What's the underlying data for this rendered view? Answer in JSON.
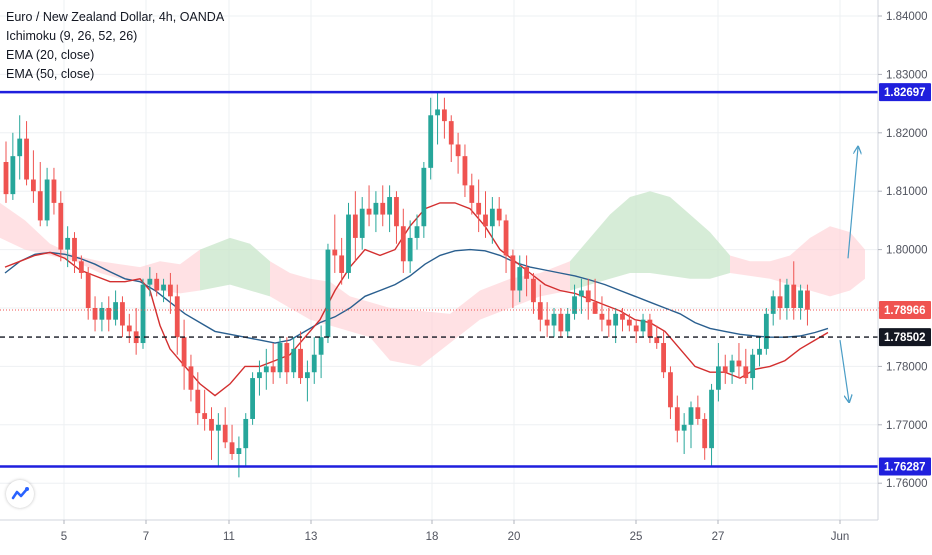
{
  "legend": {
    "symbol": "Euro / New Zealand Dollar, 4h, OANDA",
    "ichimoku": "Ichimoku (9, 26, 52, 26)",
    "ema20": "EMA (20, close)",
    "ema50": "EMA (50, close)"
  },
  "colors": {
    "up": "#26a69a",
    "down": "#ef5350",
    "ema20": "#d32f2f",
    "ema50": "#2a5f8f",
    "resistance": "#1f1fdd",
    "support": "#1f1fdd",
    "cloud_bull": "#c8e6c9",
    "cloud_bear": "#ffcdd2",
    "projection": "#4a9dc6",
    "current_price_label": "#ef5350",
    "axis_label_dark": "#131722",
    "horizontal_line_label": "#1f1fdd"
  },
  "chart_data": {
    "type": "candlestick",
    "title": "Euro / New Zealand Dollar, 4h, OANDA",
    "ylim": [
      1.7542,
      1.8464
    ],
    "y_ticks": [
      "1.84000",
      "1.83000",
      "1.82000",
      "1.81000",
      "1.80000",
      "1.79000",
      "1.78000",
      "1.77000",
      "1.76000"
    ],
    "x_ticks": [
      "5",
      "7",
      "11",
      "13",
      "18",
      "20",
      "25",
      "27",
      "Jun"
    ],
    "grid": true,
    "horizontal_lines": [
      {
        "name": "resistance",
        "price": 1.82697,
        "label": "1.82697",
        "style": "solid"
      },
      {
        "name": "support",
        "price": 1.76287,
        "label": "1.76287",
        "style": "solid"
      },
      {
        "name": "level",
        "price": 1.78502,
        "label": "1.78502",
        "style": "dashed"
      },
      {
        "name": "current-price",
        "price": 1.78966,
        "label": "1.78966",
        "style": "dotted"
      }
    ],
    "candles": [
      [
        1.815,
        1.8185,
        1.808,
        1.8095
      ],
      [
        1.8095,
        1.82,
        1.8085,
        1.816
      ],
      [
        1.816,
        1.823,
        1.812,
        1.819
      ],
      [
        1.819,
        1.822,
        1.811,
        1.812
      ],
      [
        1.812,
        1.817,
        1.808,
        1.81
      ],
      [
        1.81,
        1.815,
        1.804,
        1.805
      ],
      [
        1.805,
        1.814,
        1.804,
        1.812
      ],
      [
        1.812,
        1.814,
        1.806,
        1.808
      ],
      [
        1.808,
        1.81,
        1.798,
        1.8
      ],
      [
        1.8,
        1.804,
        1.797,
        1.802
      ],
      [
        1.802,
        1.803,
        1.796,
        1.798
      ],
      [
        1.798,
        1.799,
        1.795,
        1.796
      ],
      [
        1.796,
        1.797,
        1.788,
        1.79
      ],
      [
        1.79,
        1.792,
        1.786,
        1.788
      ],
      [
        1.788,
        1.791,
        1.786,
        1.79
      ],
      [
        1.79,
        1.792,
        1.786,
        1.788
      ],
      [
        1.788,
        1.793,
        1.787,
        1.791
      ],
      [
        1.791,
        1.792,
        1.785,
        1.787
      ],
      [
        1.787,
        1.789,
        1.784,
        1.786
      ],
      [
        1.786,
        1.79,
        1.782,
        1.784
      ],
      [
        1.784,
        1.795,
        1.783,
        1.794
      ],
      [
        1.794,
        1.797,
        1.792,
        1.795
      ],
      [
        1.795,
        1.796,
        1.792,
        1.793
      ],
      [
        1.793,
        1.795,
        1.791,
        1.794
      ],
      [
        1.794,
        1.796,
        1.789,
        1.792
      ],
      [
        1.792,
        1.794,
        1.782,
        1.785
      ],
      [
        1.785,
        1.788,
        1.776,
        1.78
      ],
      [
        1.78,
        1.782,
        1.774,
        1.776
      ],
      [
        1.776,
        1.779,
        1.77,
        1.772
      ],
      [
        1.772,
        1.776,
        1.769,
        1.771
      ],
      [
        1.771,
        1.773,
        1.764,
        1.769
      ],
      [
        1.769,
        1.772,
        1.763,
        1.77
      ],
      [
        1.77,
        1.773,
        1.766,
        1.767
      ],
      [
        1.767,
        1.77,
        1.764,
        1.765
      ],
      [
        1.765,
        1.768,
        1.761,
        1.766
      ],
      [
        1.766,
        1.772,
        1.763,
        1.771
      ],
      [
        1.771,
        1.779,
        1.77,
        1.778
      ],
      [
        1.778,
        1.781,
        1.775,
        1.779
      ],
      [
        1.779,
        1.783,
        1.776,
        1.78
      ],
      [
        1.78,
        1.784,
        1.777,
        1.779
      ],
      [
        1.779,
        1.785,
        1.778,
        1.784
      ],
      [
        1.784,
        1.785,
        1.777,
        1.779
      ],
      [
        1.779,
        1.785,
        1.778,
        1.783
      ],
      [
        1.783,
        1.786,
        1.777,
        1.778
      ],
      [
        1.778,
        1.781,
        1.774,
        1.779
      ],
      [
        1.779,
        1.785,
        1.777,
        1.782
      ],
      [
        1.782,
        1.787,
        1.778,
        1.785
      ],
      [
        1.785,
        1.801,
        1.784,
        1.8
      ],
      [
        1.8,
        1.806,
        1.796,
        1.799
      ],
      [
        1.799,
        1.802,
        1.794,
        1.796
      ],
      [
        1.796,
        1.808,
        1.795,
        1.806
      ],
      [
        1.806,
        1.81,
        1.798,
        1.802
      ],
      [
        1.802,
        1.809,
        1.8,
        1.807
      ],
      [
        1.807,
        1.811,
        1.804,
        1.806
      ],
      [
        1.806,
        1.81,
        1.803,
        1.808
      ],
      [
        1.808,
        1.811,
        1.804,
        1.806
      ],
      [
        1.806,
        1.811,
        1.803,
        1.809
      ],
      [
        1.809,
        1.81,
        1.801,
        1.804
      ],
      [
        1.804,
        1.807,
        1.796,
        1.798
      ],
      [
        1.798,
        1.805,
        1.796,
        1.802
      ],
      [
        1.802,
        1.806,
        1.8,
        1.804
      ],
      [
        1.804,
        1.815,
        1.802,
        1.814
      ],
      [
        1.814,
        1.826,
        1.812,
        1.823
      ],
      [
        1.823,
        1.827,
        1.818,
        1.824
      ],
      [
        1.824,
        1.826,
        1.819,
        1.822
      ],
      [
        1.822,
        1.823,
        1.815,
        1.818
      ],
      [
        1.818,
        1.82,
        1.813,
        1.816
      ],
      [
        1.816,
        1.818,
        1.809,
        1.811
      ],
      [
        1.811,
        1.813,
        1.806,
        1.808
      ],
      [
        1.808,
        1.812,
        1.803,
        1.806
      ],
      [
        1.806,
        1.81,
        1.802,
        1.804
      ],
      [
        1.804,
        1.809,
        1.801,
        1.807
      ],
      [
        1.807,
        1.809,
        1.804,
        1.805
      ],
      [
        1.805,
        1.806,
        1.796,
        1.799
      ],
      [
        1.799,
        1.8,
        1.79,
        1.793
      ],
      [
        1.793,
        1.799,
        1.791,
        1.797
      ],
      [
        1.797,
        1.799,
        1.792,
        1.795
      ],
      [
        1.795,
        1.796,
        1.789,
        1.791
      ],
      [
        1.791,
        1.794,
        1.786,
        1.788
      ],
      [
        1.788,
        1.791,
        1.785,
        1.787
      ],
      [
        1.787,
        1.79,
        1.785,
        1.789
      ],
      [
        1.789,
        1.79,
        1.785,
        1.786
      ],
      [
        1.786,
        1.79,
        1.785,
        1.789
      ],
      [
        1.789,
        1.794,
        1.788,
        1.792
      ],
      [
        1.792,
        1.795,
        1.789,
        1.793
      ],
      [
        1.793,
        1.795,
        1.788,
        1.791
      ],
      [
        1.791,
        1.795,
        1.789,
        1.789
      ],
      [
        1.789,
        1.792,
        1.786,
        1.788
      ],
      [
        1.788,
        1.79,
        1.785,
        1.787
      ],
      [
        1.787,
        1.79,
        1.784,
        1.789
      ],
      [
        1.789,
        1.79,
        1.786,
        1.788
      ],
      [
        1.788,
        1.789,
        1.786,
        1.787
      ],
      [
        1.787,
        1.788,
        1.784,
        1.786
      ],
      [
        1.786,
        1.789,
        1.785,
        1.788
      ],
      [
        1.788,
        1.789,
        1.784,
        1.785
      ],
      [
        1.785,
        1.787,
        1.783,
        1.784
      ],
      [
        1.784,
        1.786,
        1.778,
        1.779
      ],
      [
        1.779,
        1.78,
        1.771,
        1.773
      ],
      [
        1.773,
        1.775,
        1.767,
        1.769
      ],
      [
        1.769,
        1.772,
        1.765,
        1.77
      ],
      [
        1.77,
        1.774,
        1.766,
        1.773
      ],
      [
        1.773,
        1.775,
        1.77,
        1.771
      ],
      [
        1.771,
        1.772,
        1.764,
        1.766
      ],
      [
        1.766,
        1.777,
        1.763,
        1.776
      ],
      [
        1.776,
        1.784,
        1.774,
        1.78
      ],
      [
        1.78,
        1.782,
        1.777,
        1.779
      ],
      [
        1.779,
        1.782,
        1.777,
        1.781
      ],
      [
        1.781,
        1.784,
        1.778,
        1.78
      ],
      [
        1.78,
        1.783,
        1.777,
        1.778
      ],
      [
        1.778,
        1.783,
        1.776,
        1.782
      ],
      [
        1.782,
        1.785,
        1.78,
        1.783
      ],
      [
        1.783,
        1.79,
        1.782,
        1.789
      ],
      [
        1.789,
        1.793,
        1.787,
        1.792
      ],
      [
        1.792,
        1.795,
        1.788,
        1.79
      ],
      [
        1.79,
        1.795,
        1.788,
        1.794
      ],
      [
        1.794,
        1.798,
        1.788,
        1.79
      ],
      [
        1.79,
        1.794,
        1.788,
        1.793
      ],
      [
        1.793,
        1.794,
        1.787,
        1.7897
      ]
    ],
    "ema20": [
      [
        5,
        1.797
      ],
      [
        20,
        1.798
      ],
      [
        35,
        1.799
      ],
      [
        50,
        1.7995
      ],
      [
        65,
        1.7985
      ],
      [
        80,
        1.7965
      ],
      [
        95,
        1.7955
      ],
      [
        110,
        1.7945
      ],
      [
        125,
        1.7945
      ],
      [
        140,
        1.795
      ],
      [
        150,
        1.793
      ],
      [
        160,
        1.787
      ],
      [
        170,
        1.783
      ],
      [
        185,
        1.78
      ],
      [
        200,
        1.777
      ],
      [
        215,
        1.775
      ],
      [
        230,
        1.777
      ],
      [
        245,
        1.78
      ],
      [
        260,
        1.78
      ],
      [
        275,
        1.781
      ],
      [
        290,
        1.782
      ],
      [
        305,
        1.785
      ],
      [
        320,
        1.788
      ],
      [
        335,
        1.793
      ],
      [
        350,
        1.797
      ],
      [
        365,
        1.8
      ],
      [
        380,
        1.799
      ],
      [
        395,
        1.8
      ],
      [
        410,
        1.804
      ],
      [
        425,
        1.807
      ],
      [
        440,
        1.808
      ],
      [
        455,
        1.808
      ],
      [
        470,
        1.807
      ],
      [
        485,
        1.804
      ],
      [
        500,
        1.8
      ],
      [
        515,
        1.798
      ],
      [
        530,
        1.796
      ],
      [
        545,
        1.794
      ],
      [
        560,
        1.793
      ],
      [
        575,
        1.7925
      ],
      [
        590,
        1.7915
      ],
      [
        605,
        1.7905
      ],
      [
        620,
        1.7895
      ],
      [
        635,
        1.788
      ],
      [
        650,
        1.7875
      ],
      [
        665,
        1.786
      ],
      [
        680,
        1.783
      ],
      [
        695,
        1.78
      ],
      [
        710,
        1.779
      ],
      [
        725,
        1.779
      ],
      [
        740,
        1.778
      ],
      [
        755,
        1.7795
      ],
      [
        770,
        1.78
      ],
      [
        785,
        1.781
      ],
      [
        800,
        1.783
      ],
      [
        815,
        1.7845
      ],
      [
        828,
        1.7858
      ]
    ],
    "ema50": [
      [
        5,
        1.796
      ],
      [
        20,
        1.798
      ],
      [
        35,
        1.7992
      ],
      [
        50,
        1.7995
      ],
      [
        65,
        1.7992
      ],
      [
        80,
        1.7985
      ],
      [
        95,
        1.7975
      ],
      [
        110,
        1.7962
      ],
      [
        125,
        1.795
      ],
      [
        140,
        1.7945
      ],
      [
        155,
        1.793
      ],
      [
        170,
        1.791
      ],
      [
        185,
        1.789
      ],
      [
        200,
        1.7875
      ],
      [
        215,
        1.786
      ],
      [
        230,
        1.7855
      ],
      [
        245,
        1.785
      ],
      [
        260,
        1.7845
      ],
      [
        275,
        1.784
      ],
      [
        290,
        1.7845
      ],
      [
        305,
        1.786
      ],
      [
        320,
        1.7875
      ],
      [
        335,
        1.7885
      ],
      [
        350,
        1.79
      ],
      [
        365,
        1.792
      ],
      [
        380,
        1.793
      ],
      [
        395,
        1.794
      ],
      [
        410,
        1.7955
      ],
      [
        425,
        1.7975
      ],
      [
        440,
        1.799
      ],
      [
        455,
        1.7998
      ],
      [
        470,
        1.8
      ],
      [
        485,
        1.7998
      ],
      [
        500,
        1.799
      ],
      [
        515,
        1.7978
      ],
      [
        530,
        1.797
      ],
      [
        545,
        1.7965
      ],
      [
        560,
        1.796
      ],
      [
        575,
        1.7955
      ],
      [
        590,
        1.7948
      ],
      [
        605,
        1.794
      ],
      [
        620,
        1.793
      ],
      [
        635,
        1.792
      ],
      [
        650,
        1.791
      ],
      [
        665,
        1.79
      ],
      [
        680,
        1.789
      ],
      [
        695,
        1.7875
      ],
      [
        710,
        1.7865
      ],
      [
        725,
        1.786
      ],
      [
        740,
        1.7855
      ],
      [
        755,
        1.7852
      ],
      [
        770,
        1.785
      ],
      [
        785,
        1.785
      ],
      [
        800,
        1.7852
      ],
      [
        815,
        1.7858
      ],
      [
        828,
        1.7865
      ]
    ],
    "cloud_upper": [
      [
        0,
        1.808
      ],
      [
        25,
        1.805
      ],
      [
        50,
        1.801
      ],
      [
        75,
        1.799
      ],
      [
        100,
        1.798
      ],
      [
        120,
        1.7975
      ],
      [
        140,
        1.797
      ],
      [
        160,
        1.798
      ],
      [
        180,
        1.7975
      ],
      [
        200,
        1.8
      ],
      [
        230,
        1.802
      ],
      [
        250,
        1.801
      ],
      [
        270,
        1.798
      ],
      [
        290,
        1.796
      ],
      [
        310,
        1.795
      ],
      [
        330,
        1.7945
      ],
      [
        350,
        1.792
      ],
      [
        370,
        1.791
      ],
      [
        390,
        1.79
      ],
      [
        420,
        1.7895
      ],
      [
        450,
        1.789
      ],
      [
        480,
        1.793
      ],
      [
        510,
        1.795
      ],
      [
        540,
        1.796
      ],
      [
        570,
        1.798
      ],
      [
        590,
        1.802
      ],
      [
        610,
        1.806
      ],
      [
        630,
        1.809
      ],
      [
        650,
        1.81
      ],
      [
        670,
        1.809
      ],
      [
        690,
        1.806
      ],
      [
        710,
        1.803
      ],
      [
        730,
        1.799
      ],
      [
        750,
        1.798
      ],
      [
        770,
        1.798
      ],
      [
        790,
        1.799
      ],
      [
        810,
        1.802
      ],
      [
        830,
        1.804
      ],
      [
        850,
        1.803
      ],
      [
        865,
        1.8
      ]
    ],
    "cloud_lower": [
      [
        0,
        1.802
      ],
      [
        25,
        1.8
      ],
      [
        50,
        1.799
      ],
      [
        75,
        1.798
      ],
      [
        100,
        1.796
      ],
      [
        120,
        1.795
      ],
      [
        140,
        1.7945
      ],
      [
        160,
        1.793
      ],
      [
        180,
        1.7925
      ],
      [
        200,
        1.793
      ],
      [
        230,
        1.794
      ],
      [
        250,
        1.793
      ],
      [
        270,
        1.792
      ],
      [
        290,
        1.79
      ],
      [
        310,
        1.788
      ],
      [
        330,
        1.787
      ],
      [
        350,
        1.786
      ],
      [
        370,
        1.785
      ],
      [
        390,
        1.781
      ],
      [
        420,
        1.78
      ],
      [
        450,
        1.784
      ],
      [
        480,
        1.788
      ],
      [
        510,
        1.79
      ],
      [
        540,
        1.792
      ],
      [
        570,
        1.793
      ],
      [
        590,
        1.794
      ],
      [
        610,
        1.795
      ],
      [
        630,
        1.796
      ],
      [
        650,
        1.796
      ],
      [
        670,
        1.7955
      ],
      [
        690,
        1.795
      ],
      [
        710,
        1.795
      ],
      [
        730,
        1.796
      ],
      [
        750,
        1.7955
      ],
      [
        770,
        1.795
      ],
      [
        790,
        1.794
      ],
      [
        810,
        1.793
      ],
      [
        830,
        1.792
      ],
      [
        850,
        1.793
      ],
      [
        865,
        1.795
      ]
    ],
    "projections": [
      {
        "from": [
          848,
          1.7985
        ],
        "to": [
          858,
          1.8175
        ]
      },
      {
        "from": [
          840,
          1.7845
        ],
        "to": [
          849,
          1.774
        ]
      }
    ]
  }
}
